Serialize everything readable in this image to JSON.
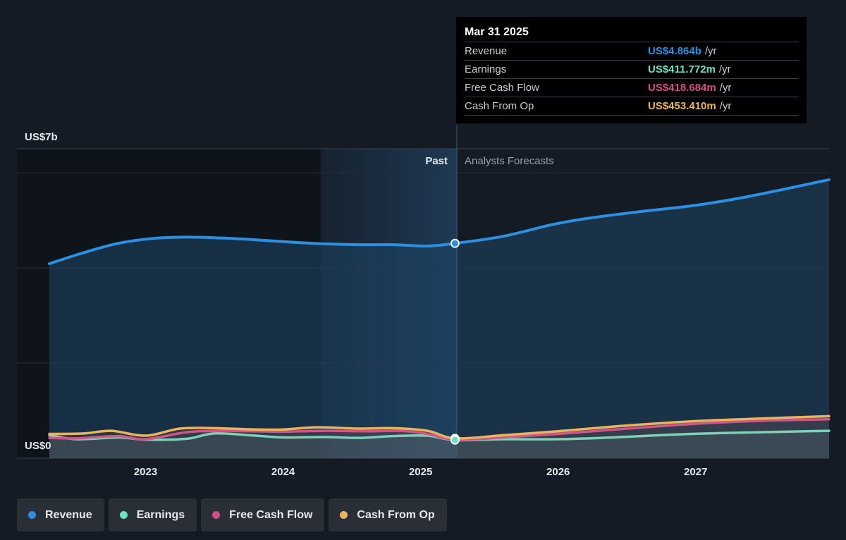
{
  "colors": {
    "background": "#151b24",
    "revenue": "#2d8fe0",
    "earnings": "#6ee0c4",
    "free_cash_flow": "#d04f8a",
    "cash_from_op": "#e8b55e"
  },
  "tooltip": {
    "date": "Mar 31 2025",
    "rows": [
      {
        "label": "Revenue",
        "value": "US$4.864b",
        "unit": "/yr",
        "color": "#2d8fe0"
      },
      {
        "label": "Earnings",
        "value": "US$411.772m",
        "unit": "/yr",
        "color": "#6ee0c4"
      },
      {
        "label": "Free Cash Flow",
        "value": "US$418.684m",
        "unit": "/yr",
        "color": "#d04f8a"
      },
      {
        "label": "Cash From Op",
        "value": "US$453.410m",
        "unit": "/yr",
        "color": "#e8b55e"
      }
    ]
  },
  "labels": {
    "past": "Past",
    "forecast": "Analysts Forecasts"
  },
  "legend": [
    {
      "label": "Revenue",
      "color": "#2d8fe0"
    },
    {
      "label": "Earnings",
      "color": "#6ee0c4"
    },
    {
      "label": "Free Cash Flow",
      "color": "#d04f8a"
    },
    {
      "label": "Cash From Op",
      "color": "#e8b55e"
    }
  ],
  "chart_data": {
    "type": "line",
    "ylabel_top": "US$7b",
    "ylabel_bottom": "US$0",
    "ylim": [
      0,
      7
    ],
    "xlim": [
      2022.3,
      2027.97
    ],
    "x_ticks": [
      2023,
      2024,
      2025,
      2026,
      2027
    ],
    "x_tick_labels": [
      "2023",
      "2024",
      "2025",
      "2026",
      "2027"
    ],
    "divider_x": 2025.25,
    "highlight_start_x": 2024.25,
    "series": [
      {
        "name": "Revenue",
        "color": "#2d8fe0",
        "points": [
          [
            2022.3,
            4.4
          ],
          [
            2022.55,
            4.65
          ],
          [
            2022.8,
            4.86
          ],
          [
            2023.05,
            4.97
          ],
          [
            2023.3,
            5.0
          ],
          [
            2023.55,
            4.98
          ],
          [
            2023.8,
            4.94
          ],
          [
            2024.05,
            4.89
          ],
          [
            2024.3,
            4.85
          ],
          [
            2024.55,
            4.83
          ],
          [
            2024.8,
            4.83
          ],
          [
            2025.05,
            4.8
          ],
          [
            2025.25,
            4.86
          ],
          [
            2025.6,
            5.02
          ],
          [
            2025.95,
            5.28
          ],
          [
            2026.2,
            5.42
          ],
          [
            2026.6,
            5.58
          ],
          [
            2027.0,
            5.72
          ],
          [
            2027.4,
            5.93
          ],
          [
            2027.97,
            6.3
          ]
        ]
      },
      {
        "name": "Earnings",
        "color": "#6ee0c4",
        "points": [
          [
            2022.3,
            0.52
          ],
          [
            2022.5,
            0.43
          ],
          [
            2022.8,
            0.47
          ],
          [
            2023.0,
            0.42
          ],
          [
            2023.3,
            0.44
          ],
          [
            2023.5,
            0.56
          ],
          [
            2023.8,
            0.51
          ],
          [
            2024.0,
            0.47
          ],
          [
            2024.3,
            0.48
          ],
          [
            2024.55,
            0.46
          ],
          [
            2024.8,
            0.5
          ],
          [
            2025.05,
            0.51
          ],
          [
            2025.25,
            0.41
          ],
          [
            2025.6,
            0.43
          ],
          [
            2026.0,
            0.43
          ],
          [
            2026.4,
            0.47
          ],
          [
            2026.8,
            0.53
          ],
          [
            2027.2,
            0.57
          ],
          [
            2027.97,
            0.62
          ]
        ]
      },
      {
        "name": "Free Cash Flow",
        "color": "#d04f8a",
        "points": [
          [
            2022.3,
            0.46
          ],
          [
            2022.5,
            0.45
          ],
          [
            2022.8,
            0.5
          ],
          [
            2023.0,
            0.43
          ],
          [
            2023.3,
            0.59
          ],
          [
            2023.55,
            0.62
          ],
          [
            2023.8,
            0.61
          ],
          [
            2024.0,
            0.6
          ],
          [
            2024.3,
            0.62
          ],
          [
            2024.6,
            0.61
          ],
          [
            2024.85,
            0.62
          ],
          [
            2025.05,
            0.55
          ],
          [
            2025.25,
            0.42
          ],
          [
            2025.6,
            0.47
          ],
          [
            2026.0,
            0.55
          ],
          [
            2026.5,
            0.67
          ],
          [
            2027.0,
            0.78
          ],
          [
            2027.5,
            0.85
          ],
          [
            2027.97,
            0.88
          ]
        ]
      },
      {
        "name": "Cash From Op",
        "color": "#e8b55e",
        "points": [
          [
            2022.3,
            0.55
          ],
          [
            2022.55,
            0.56
          ],
          [
            2022.75,
            0.62
          ],
          [
            2023.0,
            0.51
          ],
          [
            2023.25,
            0.67
          ],
          [
            2023.5,
            0.68
          ],
          [
            2023.8,
            0.65
          ],
          [
            2024.0,
            0.65
          ],
          [
            2024.25,
            0.7
          ],
          [
            2024.55,
            0.67
          ],
          [
            2024.8,
            0.68
          ],
          [
            2025.05,
            0.62
          ],
          [
            2025.25,
            0.45
          ],
          [
            2025.6,
            0.52
          ],
          [
            2026.0,
            0.61
          ],
          [
            2026.5,
            0.74
          ],
          [
            2027.0,
            0.84
          ],
          [
            2027.5,
            0.9
          ],
          [
            2027.97,
            0.95
          ]
        ]
      }
    ]
  }
}
